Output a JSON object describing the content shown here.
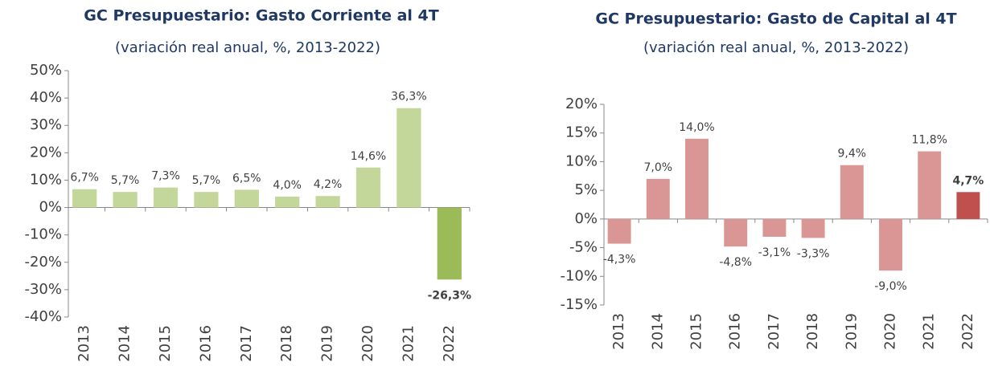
{
  "chart_data": [
    {
      "type": "bar",
      "title": "GC Presupuestario: Gasto Corriente al 4T",
      "subtitle": "(variación real anual, %, 2013-2022)",
      "categories": [
        "2013",
        "2014",
        "2015",
        "2016",
        "2017",
        "2018",
        "2019",
        "2020",
        "2021",
        "2022"
      ],
      "values": [
        6.7,
        5.7,
        7.3,
        5.7,
        6.5,
        4.0,
        4.2,
        14.6,
        36.3,
        -26.3
      ],
      "value_labels": [
        "6,7%",
        "5,7%",
        "7,3%",
        "5,7%",
        "6,5%",
        "4,0%",
        "4,2%",
        "14,6%",
        "36,3%",
        "-26,3%"
      ],
      "colors": [
        "#c4d79b",
        "#c4d79b",
        "#c4d79b",
        "#c4d79b",
        "#c4d79b",
        "#c4d79b",
        "#c4d79b",
        "#c4d79b",
        "#c4d79b",
        "#9bbb59"
      ],
      "ylim": [
        -40,
        50
      ],
      "yticks": [
        {
          "value": -40,
          "label": "-40%"
        },
        {
          "value": -30,
          "label": "-30%"
        },
        {
          "value": -20,
          "label": "-20%"
        },
        {
          "value": -10,
          "label": "-10%"
        },
        {
          "value": 0,
          "label": "0%"
        },
        {
          "value": 10,
          "label": "10%"
        },
        {
          "value": 20,
          "label": "20%"
        },
        {
          "value": 30,
          "label": "30%"
        },
        {
          "value": 40,
          "label": "40%"
        },
        {
          "value": 50,
          "label": "50%"
        }
      ]
    },
    {
      "type": "bar",
      "title": "GC Presupuestario: Gasto de Capital al 4T",
      "subtitle": "(variación real anual, %, 2013-2022)",
      "categories": [
        "2013",
        "2014",
        "2015",
        "2016",
        "2017",
        "2018",
        "2019",
        "2020",
        "2021",
        "2022"
      ],
      "values": [
        -4.3,
        7.0,
        14.0,
        -4.8,
        -3.1,
        -3.3,
        9.4,
        -9.0,
        11.8,
        4.7
      ],
      "value_labels": [
        "-4,3%",
        "7,0%",
        "14,0%",
        "-4,8%",
        "-3,1%",
        "-3,3%",
        "9,4%",
        "-9,0%",
        "11,8%",
        "4,7%"
      ],
      "colors": [
        "#da9694",
        "#da9694",
        "#da9694",
        "#da9694",
        "#da9694",
        "#da9694",
        "#da9694",
        "#da9694",
        "#da9694",
        "#c0504d"
      ],
      "ylim": [
        -15,
        20
      ],
      "yticks": [
        {
          "value": -15,
          "label": "-15%"
        },
        {
          "value": -10,
          "label": "-10%"
        },
        {
          "value": -5,
          "label": "-5%"
        },
        {
          "value": 0,
          "label": "0%"
        },
        {
          "value": 5,
          "label": "5%"
        },
        {
          "value": 10,
          "label": "10%"
        },
        {
          "value": 15,
          "label": "15%"
        },
        {
          "value": 20,
          "label": "20%"
        }
      ]
    }
  ]
}
